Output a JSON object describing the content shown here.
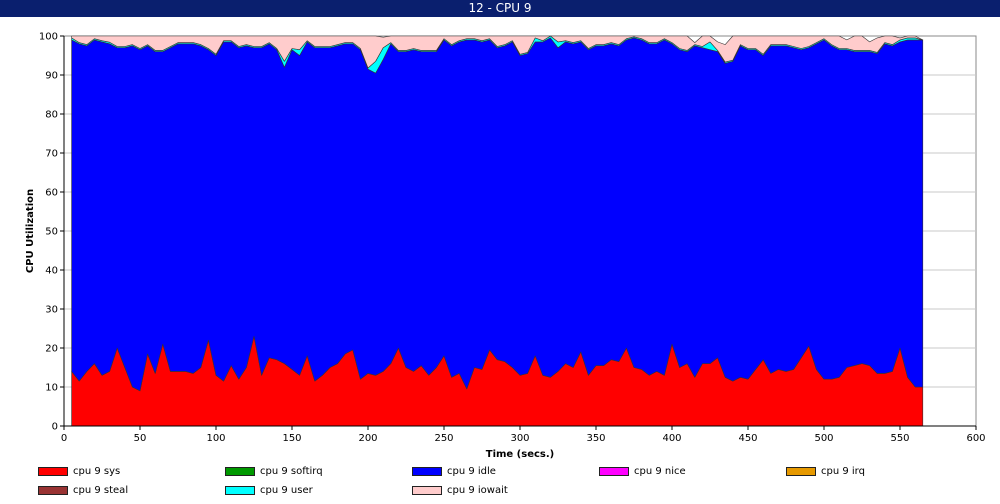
{
  "window": {
    "title": "12 - CPU 9"
  },
  "chart_data": {
    "type": "area",
    "stacked": true,
    "xlabel": "Time (secs.)",
    "ylabel": "CPU Utilization",
    "xlim": [
      0,
      600
    ],
    "ylim": [
      0,
      100
    ],
    "x_ticks": [
      0,
      50,
      100,
      150,
      200,
      250,
      300,
      350,
      400,
      450,
      500,
      550,
      600
    ],
    "y_ticks": [
      0,
      10,
      20,
      30,
      40,
      50,
      60,
      70,
      80,
      90,
      100
    ],
    "grid": "horizontal",
    "legend_position": "bottom",
    "x_start": 5,
    "x_step": 5,
    "series": [
      {
        "name": "cpu 9 sys",
        "color": "#ff0000",
        "values": [
          14,
          11.5,
          14,
          16,
          13,
          14,
          20,
          15,
          10,
          9,
          18.5,
          13.5,
          21,
          14,
          14,
          14,
          13.5,
          15,
          22,
          13,
          11.5,
          15.5,
          12,
          15,
          23,
          13,
          17.5,
          17,
          16,
          14.5,
          13,
          18,
          11.5,
          13,
          15,
          16,
          18.5,
          19.5,
          12,
          13.5,
          13,
          14,
          16,
          20,
          15,
          14,
          15.5,
          13,
          15,
          18,
          12.5,
          13.5,
          9.5,
          15,
          14.5,
          19.5,
          17,
          16.5,
          15,
          13,
          13.5,
          18,
          13,
          12.5,
          14,
          16,
          15,
          19,
          13,
          15.5,
          15.5,
          17,
          16.5,
          20,
          15,
          14.5,
          13,
          14,
          13,
          21,
          15,
          16,
          12.5,
          16,
          16,
          17.5,
          12.5,
          11.5,
          12.5,
          12,
          14.5,
          17,
          13.5,
          14.5,
          14,
          14.5,
          17.5,
          20.5,
          14.5,
          12,
          12,
          12.5,
          15,
          15.5,
          16,
          15.5,
          13.5,
          13.5,
          14,
          20,
          12.5,
          10,
          10
        ]
      },
      {
        "name": "cpu 9 softirq",
        "color": "#009900",
        "values": []
      },
      {
        "name": "cpu 9 idle",
        "color": "#0000ff",
        "values": [
          85,
          86.5,
          83.5,
          83,
          85.5,
          84,
          77,
          82,
          87.5,
          87.5,
          79,
          82.5,
          75,
          83,
          84,
          84,
          84.5,
          82.5,
          74.5,
          82,
          87,
          83,
          85,
          82.5,
          74,
          84,
          80.5,
          79.5,
          76,
          82,
          82,
          80.5,
          85.5,
          84,
          82,
          81.5,
          79.5,
          78.5,
          84.5,
          78,
          77.5,
          80,
          82,
          76,
          81,
          82.5,
          80.5,
          83,
          81,
          81,
          85,
          85,
          89.5,
          84,
          84,
          79.5,
          80,
          81,
          83.5,
          82,
          82,
          80.5,
          85.5,
          87,
          83,
          82.5,
          83,
          79.5,
          83.5,
          82,
          82,
          81,
          81,
          79,
          84.5,
          84.5,
          85,
          84,
          86,
          77,
          81.5,
          80,
          85,
          81,
          80.5,
          78.5,
          80.5,
          82,
          85,
          84.5,
          82,
          78,
          84,
          83,
          83.5,
          82.5,
          79,
          76.5,
          83.5,
          87,
          85.5,
          84,
          81.5,
          80.5,
          80,
          80.5,
          82,
          84.5,
          83.5,
          78.5,
          86.5,
          89,
          89
        ]
      },
      {
        "name": "cpu 9 nice",
        "color": "#ff00ff",
        "values": []
      },
      {
        "name": "cpu 9 irq",
        "color": "#e69900",
        "values": []
      },
      {
        "name": "cpu 9 steal",
        "color": "#993333",
        "values": []
      },
      {
        "name": "cpu 9 user",
        "color": "#00ffff",
        "values": [
          0.5,
          0.3,
          0.3,
          0.3,
          0.3,
          0.4,
          0.3,
          0.3,
          0.3,
          0.3,
          0.3,
          0.3,
          0.3,
          0.3,
          0.3,
          0.3,
          0.3,
          0.3,
          0.3,
          0.3,
          0.3,
          0.3,
          0.3,
          0.3,
          0.3,
          0.3,
          0.3,
          0.3,
          1.5,
          0.3,
          1.5,
          0.3,
          0.3,
          0.3,
          0.3,
          0.3,
          0.3,
          0.3,
          0.3,
          0.3,
          3,
          3,
          0.3,
          0.3,
          0.3,
          0.3,
          0.3,
          0.3,
          0.3,
          0.3,
          0.3,
          0.3,
          0.3,
          0.3,
          0.3,
          0.3,
          0.3,
          0.3,
          0.3,
          0.3,
          0.3,
          1,
          0.3,
          2,
          1.5,
          0.3,
          0.3,
          0.3,
          0.3,
          0.3,
          0.3,
          0.3,
          0.3,
          0.3,
          0.3,
          0.3,
          0.3,
          0.3,
          0.3,
          0.3,
          0.3,
          0.3,
          0.3,
          0.3,
          2,
          0.3,
          0.3,
          0.3,
          0.3,
          0.3,
          0.3,
          0.3,
          0.3,
          0.3,
          0.3,
          0.3,
          0.3,
          0.3,
          0.3,
          0.3,
          0.3,
          0.3,
          0.3,
          0.3,
          0.3,
          0.3,
          0.3,
          0.3,
          0.3,
          0.5,
          0.5,
          0.5
        ]
      },
      {
        "name": "cpu 9 iowait",
        "color": "#ffcccc",
        "values": [
          0.5,
          1.7,
          2.2,
          0.7,
          1.2,
          1.6,
          2.7,
          2.7,
          2.2,
          3.2,
          2.2,
          3.7,
          3.7,
          2.7,
          1.7,
          1.7,
          2.2,
          2.2,
          3.2,
          4.7,
          1.2,
          1.7,
          2.7,
          2.2,
          2.7,
          2.7,
          1.7,
          3.2,
          6.5,
          3.2,
          3.5,
          1.2,
          2.7,
          2.7,
          2.7,
          2.2,
          1.7,
          1.7,
          3.2,
          8.7,
          6.5,
          2.7,
          1.7,
          3.7,
          3.7,
          3.2,
          3.7,
          3.7,
          3.7,
          0.7,
          2.2,
          1.2,
          0.7,
          0.7,
          1.2,
          0.7,
          2.7,
          2.2,
          1.2,
          4.7,
          4.2,
          0.5,
          1.2,
          0.5,
          1.5,
          1.2,
          1.7,
          1.2,
          3.2,
          2.2,
          2.2,
          1.7,
          2.2,
          0.7,
          0.5,
          0.7,
          1.7,
          1.7,
          0.7,
          1.7,
          3.2,
          3.7,
          0.5,
          2.7,
          1.7,
          2.2,
          4.5,
          6.2,
          2.2,
          3.2,
          3.2,
          4.7,
          2.2,
          2.2,
          2.2,
          2.7,
          3.2,
          2.7,
          1.7,
          0.7,
          2.2,
          3.2,
          2.2,
          3.7,
          3.7,
          2.2,
          3.7,
          1.7,
          2.2,
          0.5,
          0.5,
          0.5
        ]
      }
    ]
  }
}
